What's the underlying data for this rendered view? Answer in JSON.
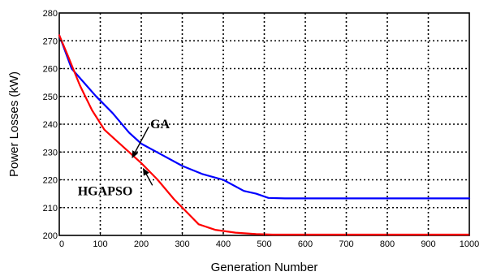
{
  "chart_data": {
    "type": "line",
    "xlabel": "Generation Number",
    "ylabel": "Power Losses (kW)",
    "xlim": [
      0,
      1000
    ],
    "ylim": [
      200,
      280
    ],
    "xticks": [
      0,
      100,
      200,
      300,
      400,
      500,
      600,
      700,
      800,
      900,
      1000
    ],
    "yticks": [
      200,
      210,
      220,
      230,
      240,
      250,
      260,
      270,
      280
    ],
    "grid": true,
    "series": [
      {
        "color": "#0000ff",
        "x": [
          0,
          30,
          60,
          90,
          130,
          170,
          200,
          250,
          300,
          350,
          400,
          450,
          480,
          510,
          550,
          600,
          700,
          800,
          900,
          1000
        ],
        "y": [
          272,
          260,
          255,
          250,
          244,
          237,
          233,
          229,
          225,
          222,
          220,
          216,
          215,
          213.5,
          213.3,
          213.3,
          213.3,
          213.3,
          213.3,
          213.3
        ]
      },
      {
        "color": "#ff0000",
        "x": [
          0,
          20,
          50,
          80,
          110,
          140,
          170,
          200,
          240,
          280,
          320,
          340,
          380,
          430,
          480,
          520,
          600,
          700,
          800,
          900,
          1000
        ],
        "y": [
          272,
          265,
          254,
          245,
          238,
          234,
          230,
          226,
          220,
          213,
          207,
          204,
          202,
          201,
          200.5,
          200.3,
          200.3,
          200.3,
          200.3,
          200.3,
          200.3
        ]
      }
    ],
    "annotations": [
      {
        "text": "GA",
        "x": 222,
        "y": 238.5,
        "arrow_to": [
          178,
          228
        ]
      },
      {
        "text": "HGAPSO",
        "x": 45,
        "y": 214.5,
        "arrow_to": [
          205,
          224
        ]
      }
    ]
  }
}
